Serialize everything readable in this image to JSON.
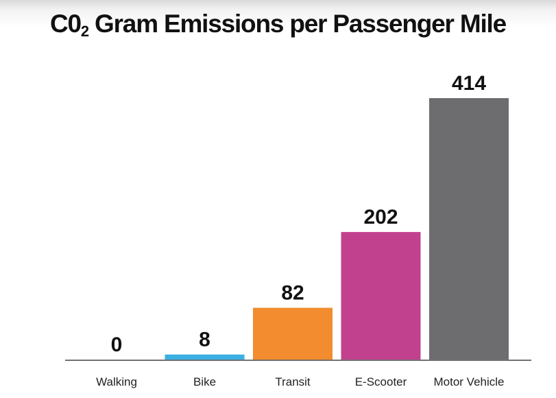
{
  "title": {
    "prefix": "C0",
    "subscript": "2",
    "rest": " Gram Emissions per Passenger Mile"
  },
  "chart_data": {
    "type": "bar",
    "title": "C02 Gram Emissions per Passenger Mile",
    "categories": [
      "Walking",
      "Bike",
      "Transit",
      "E-Scooter",
      "Motor Vehicle"
    ],
    "values": [
      0,
      8,
      82,
      202,
      414
    ],
    "colors": [
      "#ffffff",
      "#3ab0e2",
      "#f28c2e",
      "#c2418e",
      "#6d6d70"
    ],
    "ylim": [
      0,
      414
    ],
    "grid": false,
    "legend": "none",
    "data_labels": true
  }
}
